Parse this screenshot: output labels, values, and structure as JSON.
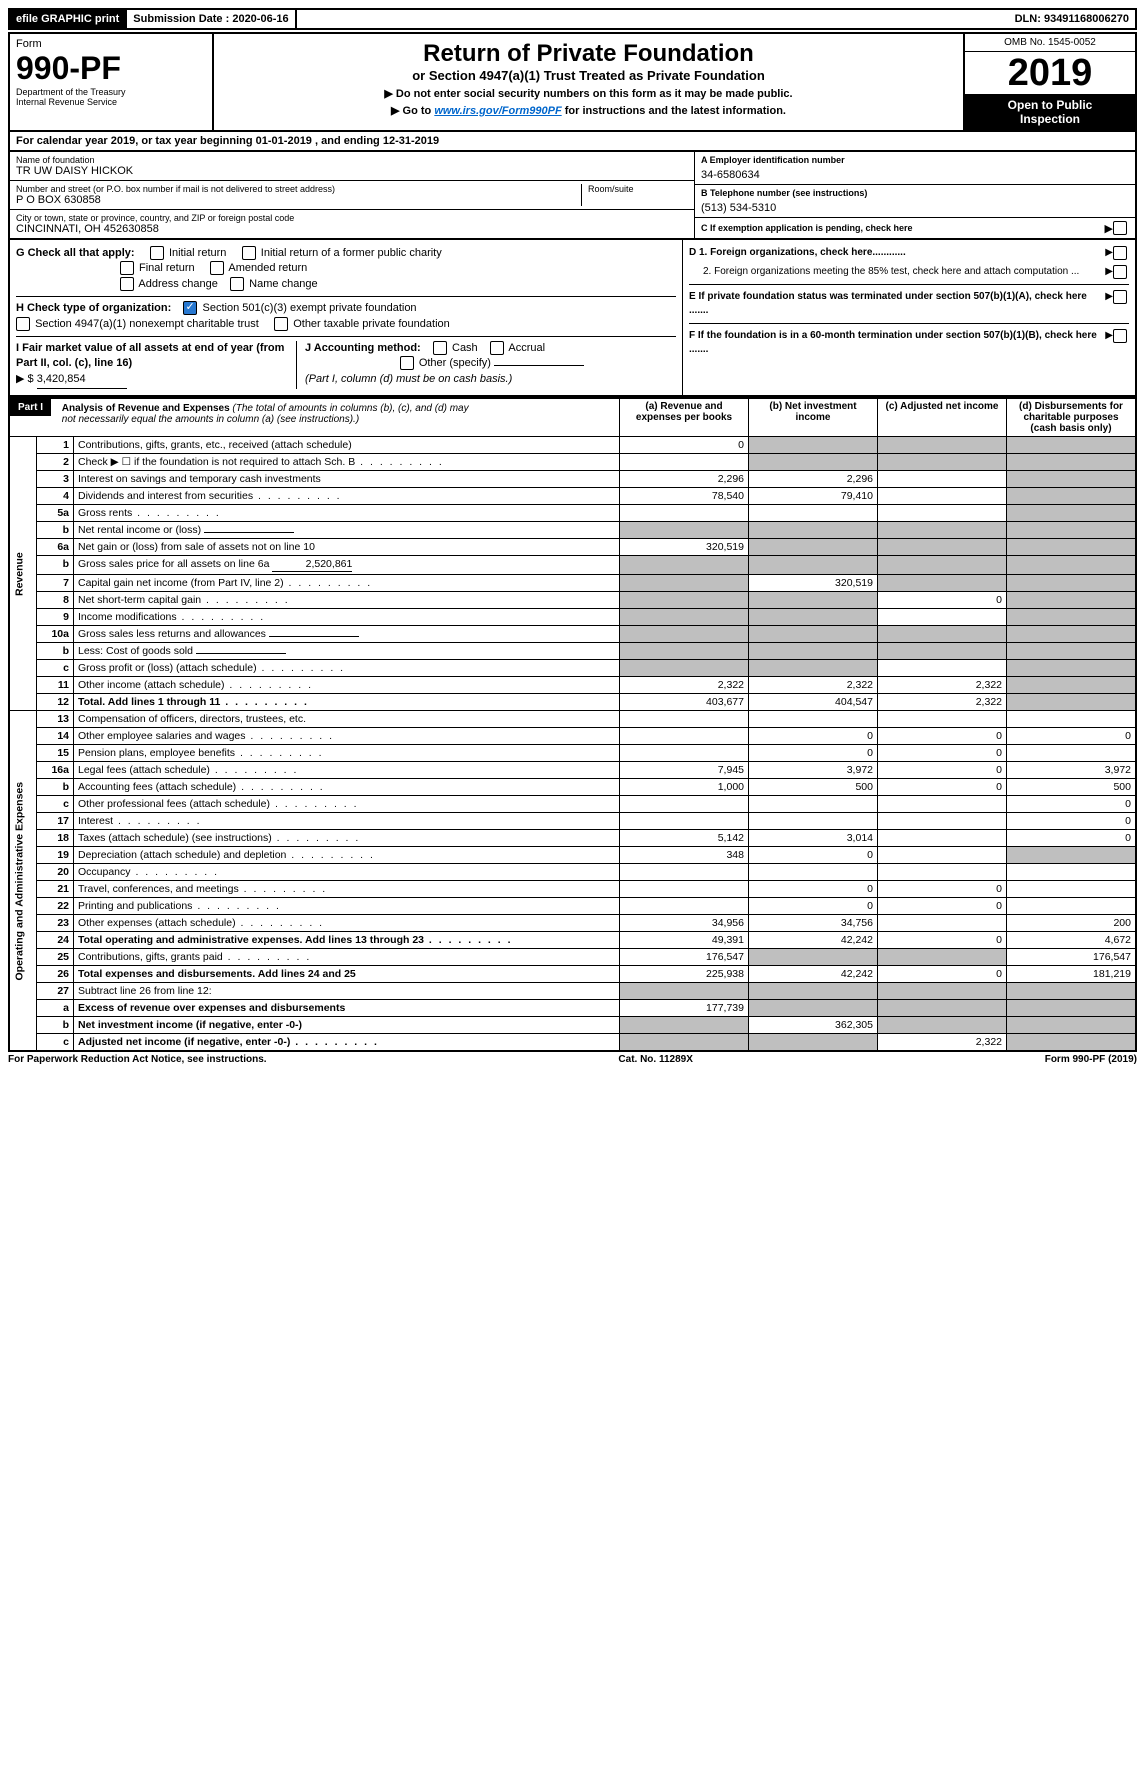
{
  "topbar": {
    "efile": "efile GRAPHIC print",
    "submission_label": "Submission Date :",
    "submission_date": "2020-06-16",
    "dln_label": "DLN:",
    "dln": "93491168006270"
  },
  "header": {
    "form_word": "Form",
    "form_number": "990-PF",
    "dept1": "Department of the Treasury",
    "dept2": "Internal Revenue Service",
    "title": "Return of Private Foundation",
    "subtitle": "or Section 4947(a)(1) Trust Treated as Private Foundation",
    "instr1": "▶ Do not enter social security numbers on this form as it may be made public.",
    "instr2_pre": "▶ Go to ",
    "instr2_url": "www.irs.gov/Form990PF",
    "instr2_post": " for instructions and the latest information.",
    "omb": "OMB No. 1545-0052",
    "year": "2019",
    "inspection1": "Open to Public",
    "inspection2": "Inspection"
  },
  "cal_year": {
    "prefix": "For calendar year 2019, or tax year beginning ",
    "begin": "01-01-2019",
    "mid": " , and ending ",
    "end": "12-31-2019"
  },
  "entity": {
    "name_label": "Name of foundation",
    "name": "TR UW DAISY HICKOK",
    "addr_label": "Number and street (or P.O. box number if mail is not delivered to street address)",
    "room_label": "Room/suite",
    "addr": "P O BOX 630858",
    "city_label": "City or town, state or province, country, and ZIP or foreign postal code",
    "city": "CINCINNATI, OH  452630858",
    "ein_label": "A Employer identification number",
    "ein": "34-6580634",
    "phone_label": "B Telephone number (see instructions)",
    "phone": "(513) 534-5310",
    "c_label": "C If exemption application is pending, check here"
  },
  "checks": {
    "g_label": "G Check all that apply:",
    "g1": "Initial return",
    "g2": "Initial return of a former public charity",
    "g3": "Final return",
    "g4": "Amended return",
    "g5": "Address change",
    "g6": "Name change",
    "h_label": "H Check type of organization:",
    "h1": "Section 501(c)(3) exempt private foundation",
    "h2": "Section 4947(a)(1) nonexempt charitable trust",
    "h3": "Other taxable private foundation",
    "i_label": "I Fair market value of all assets at end of year (from Part II, col. (c), line 16)",
    "i_val_label": "▶ $",
    "i_val": "3,420,854",
    "j_label": "J Accounting method:",
    "j1": "Cash",
    "j2": "Accrual",
    "j3": "Other (specify)",
    "j_note": "(Part I, column (d) must be on cash basis.)",
    "d1": "D 1. Foreign organizations, check here............",
    "d2": "2. Foreign organizations meeting the 85% test, check here and attach computation ...",
    "e": "E If private foundation status was terminated under section 507(b)(1)(A), check here .......",
    "f": "F If the foundation is in a 60-month termination under section 507(b)(1)(B), check here .......",
    "arrow": "▶"
  },
  "part1": {
    "part_label": "Part I",
    "heading": "Analysis of Revenue and Expenses",
    "heading_note": "(The total of amounts in columns (b), (c), and (d) may not necessarily equal the amounts in column (a) (see instructions).)",
    "col_a": "(a) Revenue and expenses per books",
    "col_b": "(b) Net investment income",
    "col_c": "(c) Adjusted net income",
    "col_d": "(d) Disbursements for charitable purposes (cash basis only)",
    "side_rev": "Revenue",
    "side_exp": "Operating and Administrative Expenses"
  },
  "rows": [
    {
      "n": "1",
      "label": "Contributions, gifts, grants, etc., received (attach schedule)",
      "a": "0",
      "b": "",
      "c": "",
      "d": "",
      "sb": true,
      "sc": true,
      "sd": true
    },
    {
      "n": "2",
      "label": "Check ▶ ☐ if the foundation is not required to attach Sch. B",
      "a": "",
      "b": "",
      "c": "",
      "d": "",
      "sb": true,
      "sc": true,
      "sd": true,
      "nobold": true,
      "dots": true
    },
    {
      "n": "3",
      "label": "Interest on savings and temporary cash investments",
      "a": "2,296",
      "b": "2,296",
      "c": "",
      "d": "",
      "sd": true
    },
    {
      "n": "4",
      "label": "Dividends and interest from securities",
      "a": "78,540",
      "b": "79,410",
      "c": "",
      "d": "",
      "sd": true,
      "dots": true
    },
    {
      "n": "5a",
      "label": "Gross rents",
      "a": "",
      "b": "",
      "c": "",
      "d": "",
      "sd": true,
      "dots": true
    },
    {
      "n": "b",
      "label": "Net rental income or (loss)",
      "a": "",
      "b": "",
      "c": "",
      "d": "",
      "sa": true,
      "sb": true,
      "sc": true,
      "sd": true,
      "inline": true
    },
    {
      "n": "6a",
      "label": "Net gain or (loss) from sale of assets not on line 10",
      "a": "320,519",
      "b": "",
      "c": "",
      "d": "",
      "sb": true,
      "sc": true,
      "sd": true
    },
    {
      "n": "b",
      "label": "Gross sales price for all assets on line 6a",
      "a": "",
      "b": "",
      "c": "",
      "d": "",
      "sa": true,
      "sb": true,
      "sc": true,
      "sd": true,
      "inline_val": "2,520,861"
    },
    {
      "n": "7",
      "label": "Capital gain net income (from Part IV, line 2)",
      "a": "",
      "b": "320,519",
      "c": "",
      "d": "",
      "sa": true,
      "sc": true,
      "sd": true,
      "dots": true
    },
    {
      "n": "8",
      "label": "Net short-term capital gain",
      "a": "",
      "b": "",
      "c": "0",
      "d": "",
      "sa": true,
      "sb": true,
      "sd": true,
      "dots": true
    },
    {
      "n": "9",
      "label": "Income modifications",
      "a": "",
      "b": "",
      "c": "",
      "d": "",
      "sa": true,
      "sb": true,
      "sd": true,
      "dots": true
    },
    {
      "n": "10a",
      "label": "Gross sales less returns and allowances",
      "a": "",
      "b": "",
      "c": "",
      "d": "",
      "sa": true,
      "sb": true,
      "sc": true,
      "sd": true,
      "inline": true
    },
    {
      "n": "b",
      "label": "Less: Cost of goods sold",
      "a": "",
      "b": "",
      "c": "",
      "d": "",
      "sa": true,
      "sb": true,
      "sc": true,
      "sd": true,
      "inline": true,
      "dots": true
    },
    {
      "n": "c",
      "label": "Gross profit or (loss) (attach schedule)",
      "a": "",
      "b": "",
      "c": "",
      "d": "",
      "sa": true,
      "sb": true,
      "sd": true,
      "dots": true
    },
    {
      "n": "11",
      "label": "Other income (attach schedule)",
      "a": "2,322",
      "b": "2,322",
      "c": "2,322",
      "d": "",
      "sd": true,
      "dots": true
    },
    {
      "n": "12",
      "label": "Total. Add lines 1 through 11",
      "a": "403,677",
      "b": "404,547",
      "c": "2,322",
      "d": "",
      "sd": true,
      "bold": true,
      "dots": true
    },
    {
      "n": "13",
      "label": "Compensation of officers, directors, trustees, etc.",
      "a": "",
      "b": "",
      "c": "",
      "d": ""
    },
    {
      "n": "14",
      "label": "Other employee salaries and wages",
      "a": "",
      "b": "0",
      "c": "0",
      "d": "0",
      "dots": true
    },
    {
      "n": "15",
      "label": "Pension plans, employee benefits",
      "a": "",
      "b": "0",
      "c": "0",
      "d": "",
      "dots": true
    },
    {
      "n": "16a",
      "label": "Legal fees (attach schedule)",
      "a": "7,945",
      "b": "3,972",
      "c": "0",
      "d": "3,972",
      "dots": true
    },
    {
      "n": "b",
      "label": "Accounting fees (attach schedule)",
      "a": "1,000",
      "b": "500",
      "c": "0",
      "d": "500",
      "dots": true
    },
    {
      "n": "c",
      "label": "Other professional fees (attach schedule)",
      "a": "",
      "b": "",
      "c": "",
      "d": "0",
      "dots": true
    },
    {
      "n": "17",
      "label": "Interest",
      "a": "",
      "b": "",
      "c": "",
      "d": "0",
      "dots": true
    },
    {
      "n": "18",
      "label": "Taxes (attach schedule) (see instructions)",
      "a": "5,142",
      "b": "3,014",
      "c": "",
      "d": "0",
      "dots": true
    },
    {
      "n": "19",
      "label": "Depreciation (attach schedule) and depletion",
      "a": "348",
      "b": "0",
      "c": "",
      "d": "",
      "sd": true,
      "dots": true
    },
    {
      "n": "20",
      "label": "Occupancy",
      "a": "",
      "b": "",
      "c": "",
      "d": "",
      "dots": true
    },
    {
      "n": "21",
      "label": "Travel, conferences, and meetings",
      "a": "",
      "b": "0",
      "c": "0",
      "d": "",
      "dots": true
    },
    {
      "n": "22",
      "label": "Printing and publications",
      "a": "",
      "b": "0",
      "c": "0",
      "d": "",
      "dots": true
    },
    {
      "n": "23",
      "label": "Other expenses (attach schedule)",
      "a": "34,956",
      "b": "34,756",
      "c": "",
      "d": "200",
      "dots": true
    },
    {
      "n": "24",
      "label": "Total operating and administrative expenses. Add lines 13 through 23",
      "a": "49,391",
      "b": "42,242",
      "c": "0",
      "d": "4,672",
      "bold": true,
      "dots": true
    },
    {
      "n": "25",
      "label": "Contributions, gifts, grants paid",
      "a": "176,547",
      "b": "",
      "c": "",
      "d": "176,547",
      "sb": true,
      "sc": true,
      "dots": true
    },
    {
      "n": "26",
      "label": "Total expenses and disbursements. Add lines 24 and 25",
      "a": "225,938",
      "b": "42,242",
      "c": "0",
      "d": "181,219",
      "bold": true
    },
    {
      "n": "27",
      "label": "Subtract line 26 from line 12:",
      "a": "",
      "b": "",
      "c": "",
      "d": "",
      "sa": true,
      "sb": true,
      "sc": true,
      "sd": true
    },
    {
      "n": "a",
      "label": "Excess of revenue over expenses and disbursements",
      "a": "177,739",
      "b": "",
      "c": "",
      "d": "",
      "sb": true,
      "sc": true,
      "sd": true,
      "bold": true
    },
    {
      "n": "b",
      "label": "Net investment income (if negative, enter -0-)",
      "a": "",
      "b": "362,305",
      "c": "",
      "d": "",
      "sa": true,
      "sc": true,
      "sd": true,
      "bold": true
    },
    {
      "n": "c",
      "label": "Adjusted net income (if negative, enter -0-)",
      "a": "",
      "b": "",
      "c": "2,322",
      "d": "",
      "sa": true,
      "sb": true,
      "sd": true,
      "bold": true,
      "dots": true
    }
  ],
  "footer": {
    "left": "For Paperwork Reduction Act Notice, see instructions.",
    "mid": "Cat. No. 11289X",
    "right": "Form 990-PF (2019)"
  },
  "colors": {
    "shade": "#bfbfbf",
    "check_blue": "#2878d0",
    "link": "#0066cc"
  }
}
